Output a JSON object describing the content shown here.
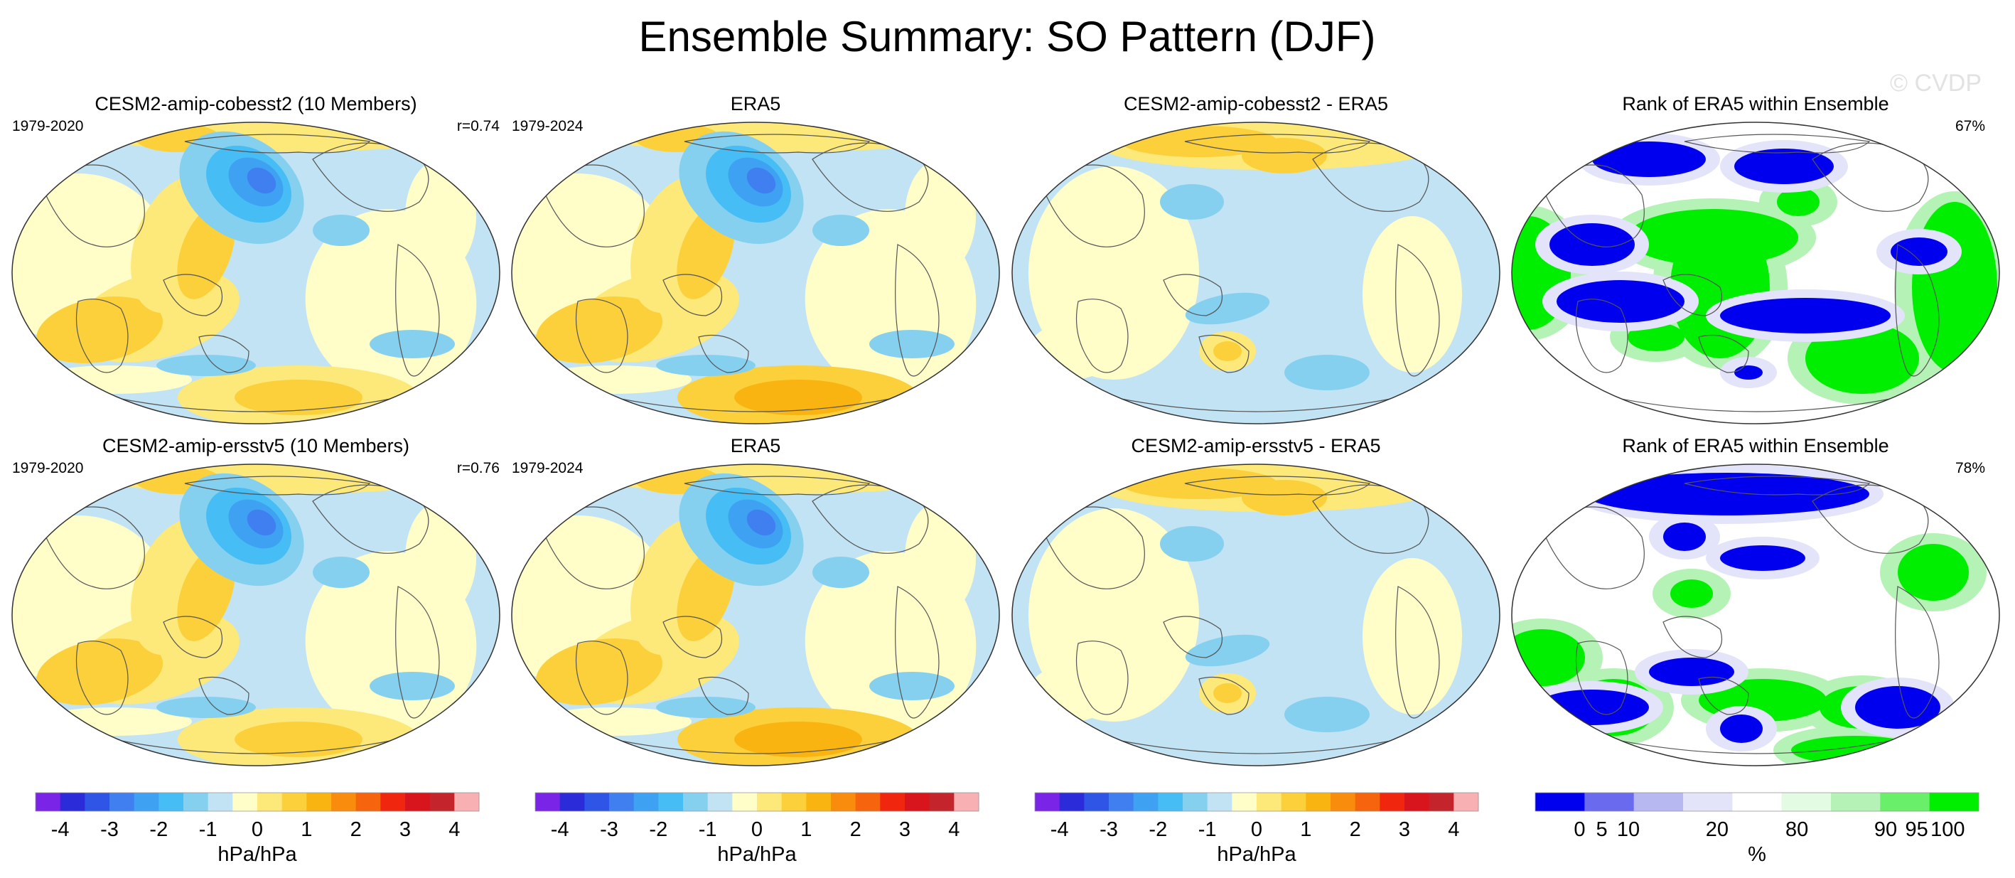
{
  "figure": {
    "title": "Ensemble Summary: SO Pattern (DJF)",
    "watermark": "© CVDP"
  },
  "colors": {
    "anomaly_scale": [
      "#7a24e8",
      "#2b2bd9",
      "#2e55e6",
      "#3f7ff0",
      "#3ea1f2",
      "#46bdf4",
      "#86d0ef",
      "#c2e3f4",
      "#fffdc8",
      "#fde87a",
      "#fbd03a",
      "#f9b412",
      "#f98c0c",
      "#f6640d",
      "#f0260f",
      "#d8141d",
      "#c4242c",
      "#f9b0b2"
    ],
    "rank_scale": [
      "#0000ee",
      "#6a6aef",
      "#b7b7f2",
      "#e3e3fa",
      "#ffffff",
      "#e3fae3",
      "#b5f2b5",
      "#6aef6a",
      "#00ee00"
    ]
  },
  "panels": [
    {
      "title": "CESM2-amip-cobesst2 (10 Members)",
      "period": "1979-2020",
      "stat": "r=0.74",
      "kind": "anomaly"
    },
    {
      "title": "ERA5",
      "period": "1979-2024",
      "stat": "",
      "kind": "anomaly"
    },
    {
      "title": "CESM2-amip-cobesst2 - ERA5",
      "period": "",
      "stat": "",
      "kind": "difference"
    },
    {
      "title": "Rank of ERA5 within Ensemble",
      "period": "",
      "stat": "67%",
      "kind": "rank"
    },
    {
      "title": "CESM2-amip-ersstv5 (10 Members)",
      "period": "1979-2020",
      "stat": "r=0.76",
      "kind": "anomaly"
    },
    {
      "title": "ERA5",
      "period": "1979-2024",
      "stat": "",
      "kind": "anomaly"
    },
    {
      "title": "CESM2-amip-ersstv5 - ERA5",
      "period": "",
      "stat": "",
      "kind": "difference"
    },
    {
      "title": "Rank of ERA5 within Ensemble",
      "period": "",
      "stat": "78%",
      "kind": "rank"
    }
  ],
  "colorbars": [
    {
      "label": "hPa/hPa",
      "ticks": [
        "-4",
        "-3",
        "-2",
        "-1",
        "0",
        "1",
        "2",
        "3",
        "4"
      ]
    },
    {
      "label": "hPa/hPa",
      "ticks": [
        "-4",
        "-3",
        "-2",
        "-1",
        "0",
        "1",
        "2",
        "3",
        "4"
      ]
    },
    {
      "label": "hPa/hPa",
      "ticks": [
        "-4",
        "-3",
        "-2",
        "-1",
        "0",
        "1",
        "2",
        "3",
        "4"
      ]
    },
    {
      "label": "%",
      "ticks": [
        "0",
        "5",
        "10",
        "20",
        "80",
        "90",
        "95",
        "100"
      ]
    }
  ],
  "chart_data": {
    "type": "heatmap",
    "title": "Ensemble Summary: SO Pattern (DJF)",
    "projection": "Robinson (Pacific-centered)",
    "units": "hPa/hPa",
    "contour_levels": [
      -4,
      -3.5,
      -3,
      -2.5,
      -2,
      -1.5,
      -1,
      -0.5,
      0,
      0.5,
      1,
      1.5,
      2,
      2.5,
      3,
      3.5,
      4
    ],
    "rank_levels_percent": [
      0,
      5,
      10,
      20,
      80,
      90,
      95,
      100
    ],
    "panels": [
      {
        "name": "CESM2-amip-cobesst2 (10 Members)",
        "period": "1979-2020",
        "pattern_correlation": 0.74
      },
      {
        "name": "ERA5",
        "period": "1979-2024"
      },
      {
        "name": "CESM2-amip-cobesst2 - ERA5"
      },
      {
        "name": "Rank of ERA5 within Ensemble",
        "area_within_10_90_percent": "67%"
      },
      {
        "name": "CESM2-amip-ersstv5 (10 Members)",
        "period": "1979-2020",
        "pattern_correlation": 0.76
      },
      {
        "name": "ERA5",
        "period": "1979-2024"
      },
      {
        "name": "CESM2-amip-ersstv5 - ERA5"
      },
      {
        "name": "Rank of ERA5 within Ensemble",
        "area_within_10_90_percent": "78%"
      }
    ]
  }
}
